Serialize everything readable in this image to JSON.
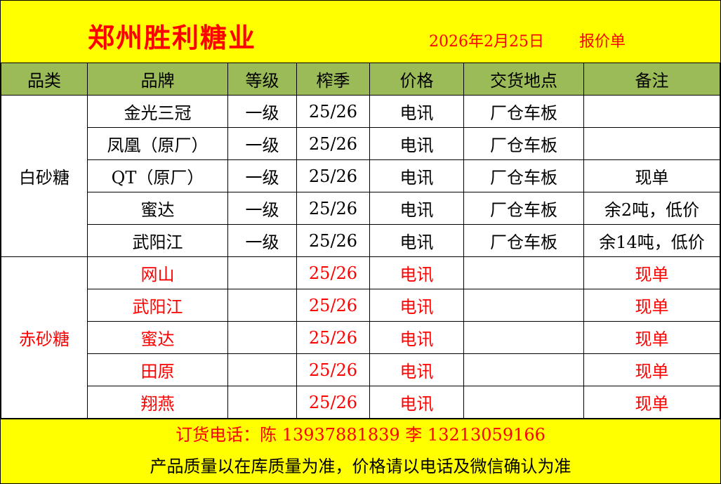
{
  "header": {
    "company": "郑州胜利糖业",
    "date": "2026年2月25日",
    "sheet_name": "报价单"
  },
  "columns": [
    "品类",
    "品牌",
    "等级",
    "榨季",
    "价格",
    "交货地点",
    "备注"
  ],
  "groups": [
    {
      "category": "白砂糖",
      "color": "#000000",
      "rows": [
        {
          "brand": "金光三冠",
          "grade": "一级",
          "season": "25/26",
          "price": "电讯",
          "delivery": "厂仓车板",
          "note": ""
        },
        {
          "brand": "凤凰（原厂）",
          "grade": "一级",
          "season": "25/26",
          "price": "电讯",
          "delivery": "厂仓车板",
          "note": ""
        },
        {
          "brand": "QT（原厂）",
          "grade": "一级",
          "season": "25/26",
          "price": "电讯",
          "delivery": "厂仓车板",
          "note": "现单"
        },
        {
          "brand": "蜜达",
          "grade": "一级",
          "season": "25/26",
          "price": "电讯",
          "delivery": "厂仓车板",
          "note": "余2吨，低价"
        },
        {
          "brand": "武阳江",
          "grade": "一级",
          "season": "25/26",
          "price": "电讯",
          "delivery": "厂仓车板",
          "note": "余14吨，低价"
        }
      ]
    },
    {
      "category": "赤砂糖",
      "color": "#ff0000",
      "rows": [
        {
          "brand": "网山",
          "grade": "",
          "season": "25/26",
          "price": "电讯",
          "delivery": "",
          "note": "现单"
        },
        {
          "brand": "武阳江",
          "grade": "",
          "season": "25/26",
          "price": "电讯",
          "delivery": "",
          "note": "现单"
        },
        {
          "brand": "蜜达",
          "grade": "",
          "season": "25/26",
          "price": "电讯",
          "delivery": "",
          "note": "现单"
        },
        {
          "brand": "田原",
          "grade": "",
          "season": "25/26",
          "price": "电讯",
          "delivery": "",
          "note": "现单"
        },
        {
          "brand": "翔燕",
          "grade": "",
          "season": "25/26",
          "price": "电讯",
          "delivery": "",
          "note": "现单"
        }
      ]
    }
  ],
  "footer": {
    "contact": "订货电话：陈 13937881839   李 13213059166",
    "disclaimer": "产品质量以在库质量为准，价格请以电话及微信确认为准"
  },
  "colors": {
    "banner": "#ffff00",
    "header_row": "#9bbb59",
    "accent": "#ff0000"
  }
}
